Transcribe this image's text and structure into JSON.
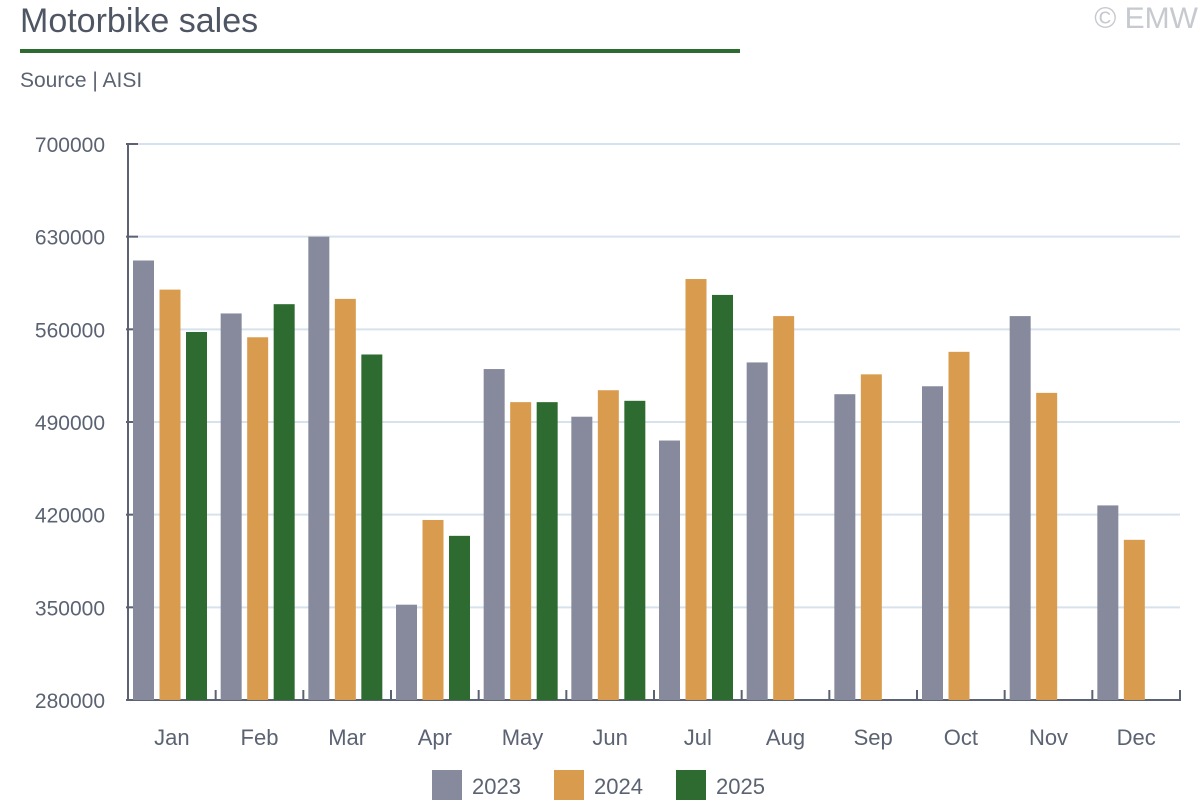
{
  "header": {
    "title": "Motorbike sales",
    "subtitle": "Source | AISI",
    "copyright": "© EMW"
  },
  "colors": {
    "accent": "#2e6b30",
    "grid": "#d6e2ec",
    "axis": "#5b6372"
  },
  "chart_data": {
    "type": "bar",
    "categories": [
      "Jan",
      "Feb",
      "Mar",
      "Apr",
      "May",
      "Jun",
      "Jul",
      "Aug",
      "Sep",
      "Oct",
      "Nov",
      "Dec"
    ],
    "series": [
      {
        "name": "2023",
        "color": "#878a9c",
        "values": [
          612000,
          572000,
          630000,
          352000,
          530000,
          494000,
          476000,
          535000,
          511000,
          517000,
          570000,
          427000
        ]
      },
      {
        "name": "2024",
        "color": "#d99b4e",
        "values": [
          590000,
          554000,
          583000,
          416000,
          505000,
          514000,
          598000,
          570000,
          526000,
          543000,
          512000,
          401000
        ]
      },
      {
        "name": "2025",
        "color": "#2e6b30",
        "values": [
          558000,
          579000,
          541000,
          404000,
          505000,
          506000,
          586000,
          null,
          null,
          null,
          null,
          null
        ]
      }
    ],
    "ylim": [
      280000,
      700000
    ],
    "yticks": [
      "700000",
      "630000",
      "560000",
      "490000",
      "420000",
      "350000",
      "280000"
    ],
    "grid": true,
    "legend_position": "bottom-center"
  }
}
